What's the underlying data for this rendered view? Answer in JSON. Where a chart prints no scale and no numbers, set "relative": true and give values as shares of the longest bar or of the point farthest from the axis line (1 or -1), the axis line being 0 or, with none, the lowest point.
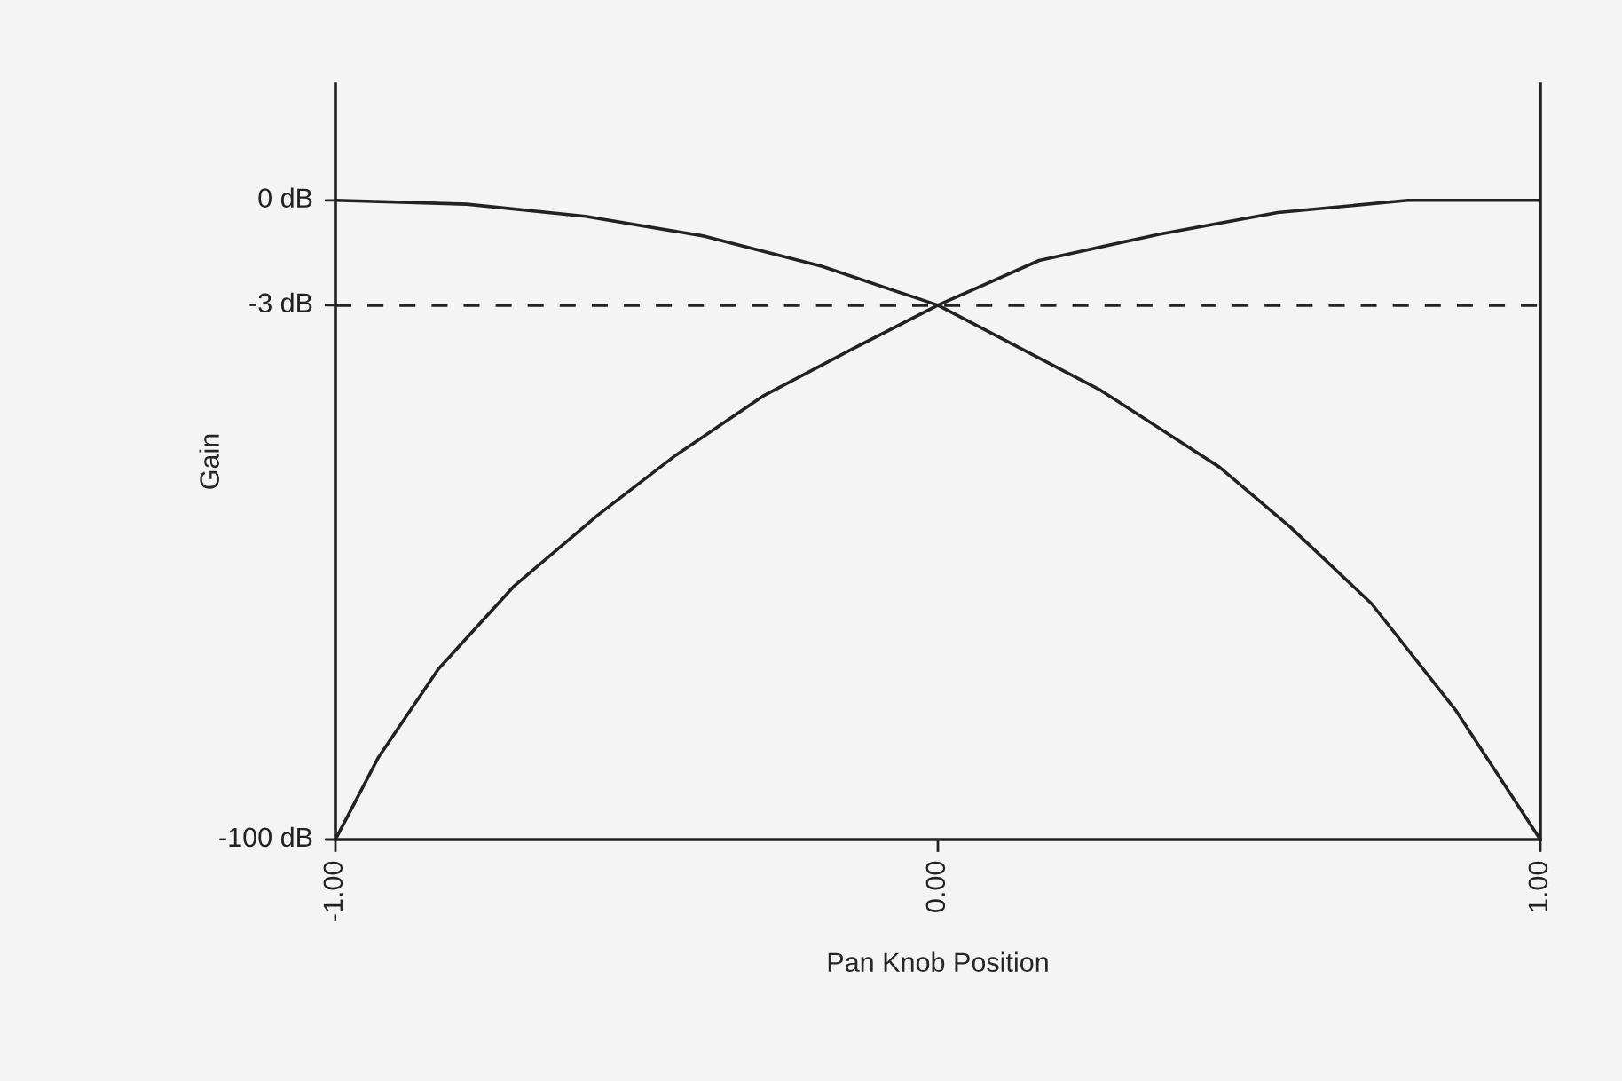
{
  "chart_data": {
    "type": "line",
    "xlabel": "Pan Knob Position",
    "ylabel": "Gain",
    "xlim": [
      -1,
      1
    ],
    "xticks": [
      {
        "value": -1,
        "label": "-1.00"
      },
      {
        "value": 0,
        "label": "0.00"
      },
      {
        "value": 1,
        "label": "1.00"
      }
    ],
    "relative": true,
    "annotations": [
      {
        "text": "0 dB",
        "x": -1,
        "y": 1.0
      },
      {
        "text": "-100 dB",
        "x": -1,
        "y": 0
      }
    ],
    "series": [
      {
        "color": "#222222",
        "x": [
          -1,
          -0.929,
          -0.829,
          -0.703,
          -0.564,
          -0.437,
          -0.29,
          -0.143,
          0,
          0.168,
          0.367,
          0.564,
          0.78,
          1
        ],
        "values": [
          0,
          0.128,
          0.267,
          0.397,
          0.508,
          0.6,
          0.694,
          0.767,
          0.836,
          0.906,
          0.947,
          0.981,
          1.0,
          1.0
        ]
      },
      {
        "color": "#222222",
        "x": [
          -1,
          -0.782,
          -0.585,
          -0.387,
          -0.193,
          0,
          0.27,
          0.467,
          0.585,
          0.72,
          0.859,
          1
        ],
        "values": [
          1.0,
          0.994,
          0.975,
          0.944,
          0.897,
          0.836,
          0.703,
          0.583,
          0.489,
          0.369,
          0.203,
          0
        ]
      }
    ],
    "ref_lines": [
      {
        "axis": "y",
        "value": 0.836,
        "label": "-3 dB",
        "color": "#222222",
        "line_style": "dashed"
      }
    ],
    "line_style": "solid",
    "marker": "none",
    "grid": false,
    "legend": false
  }
}
